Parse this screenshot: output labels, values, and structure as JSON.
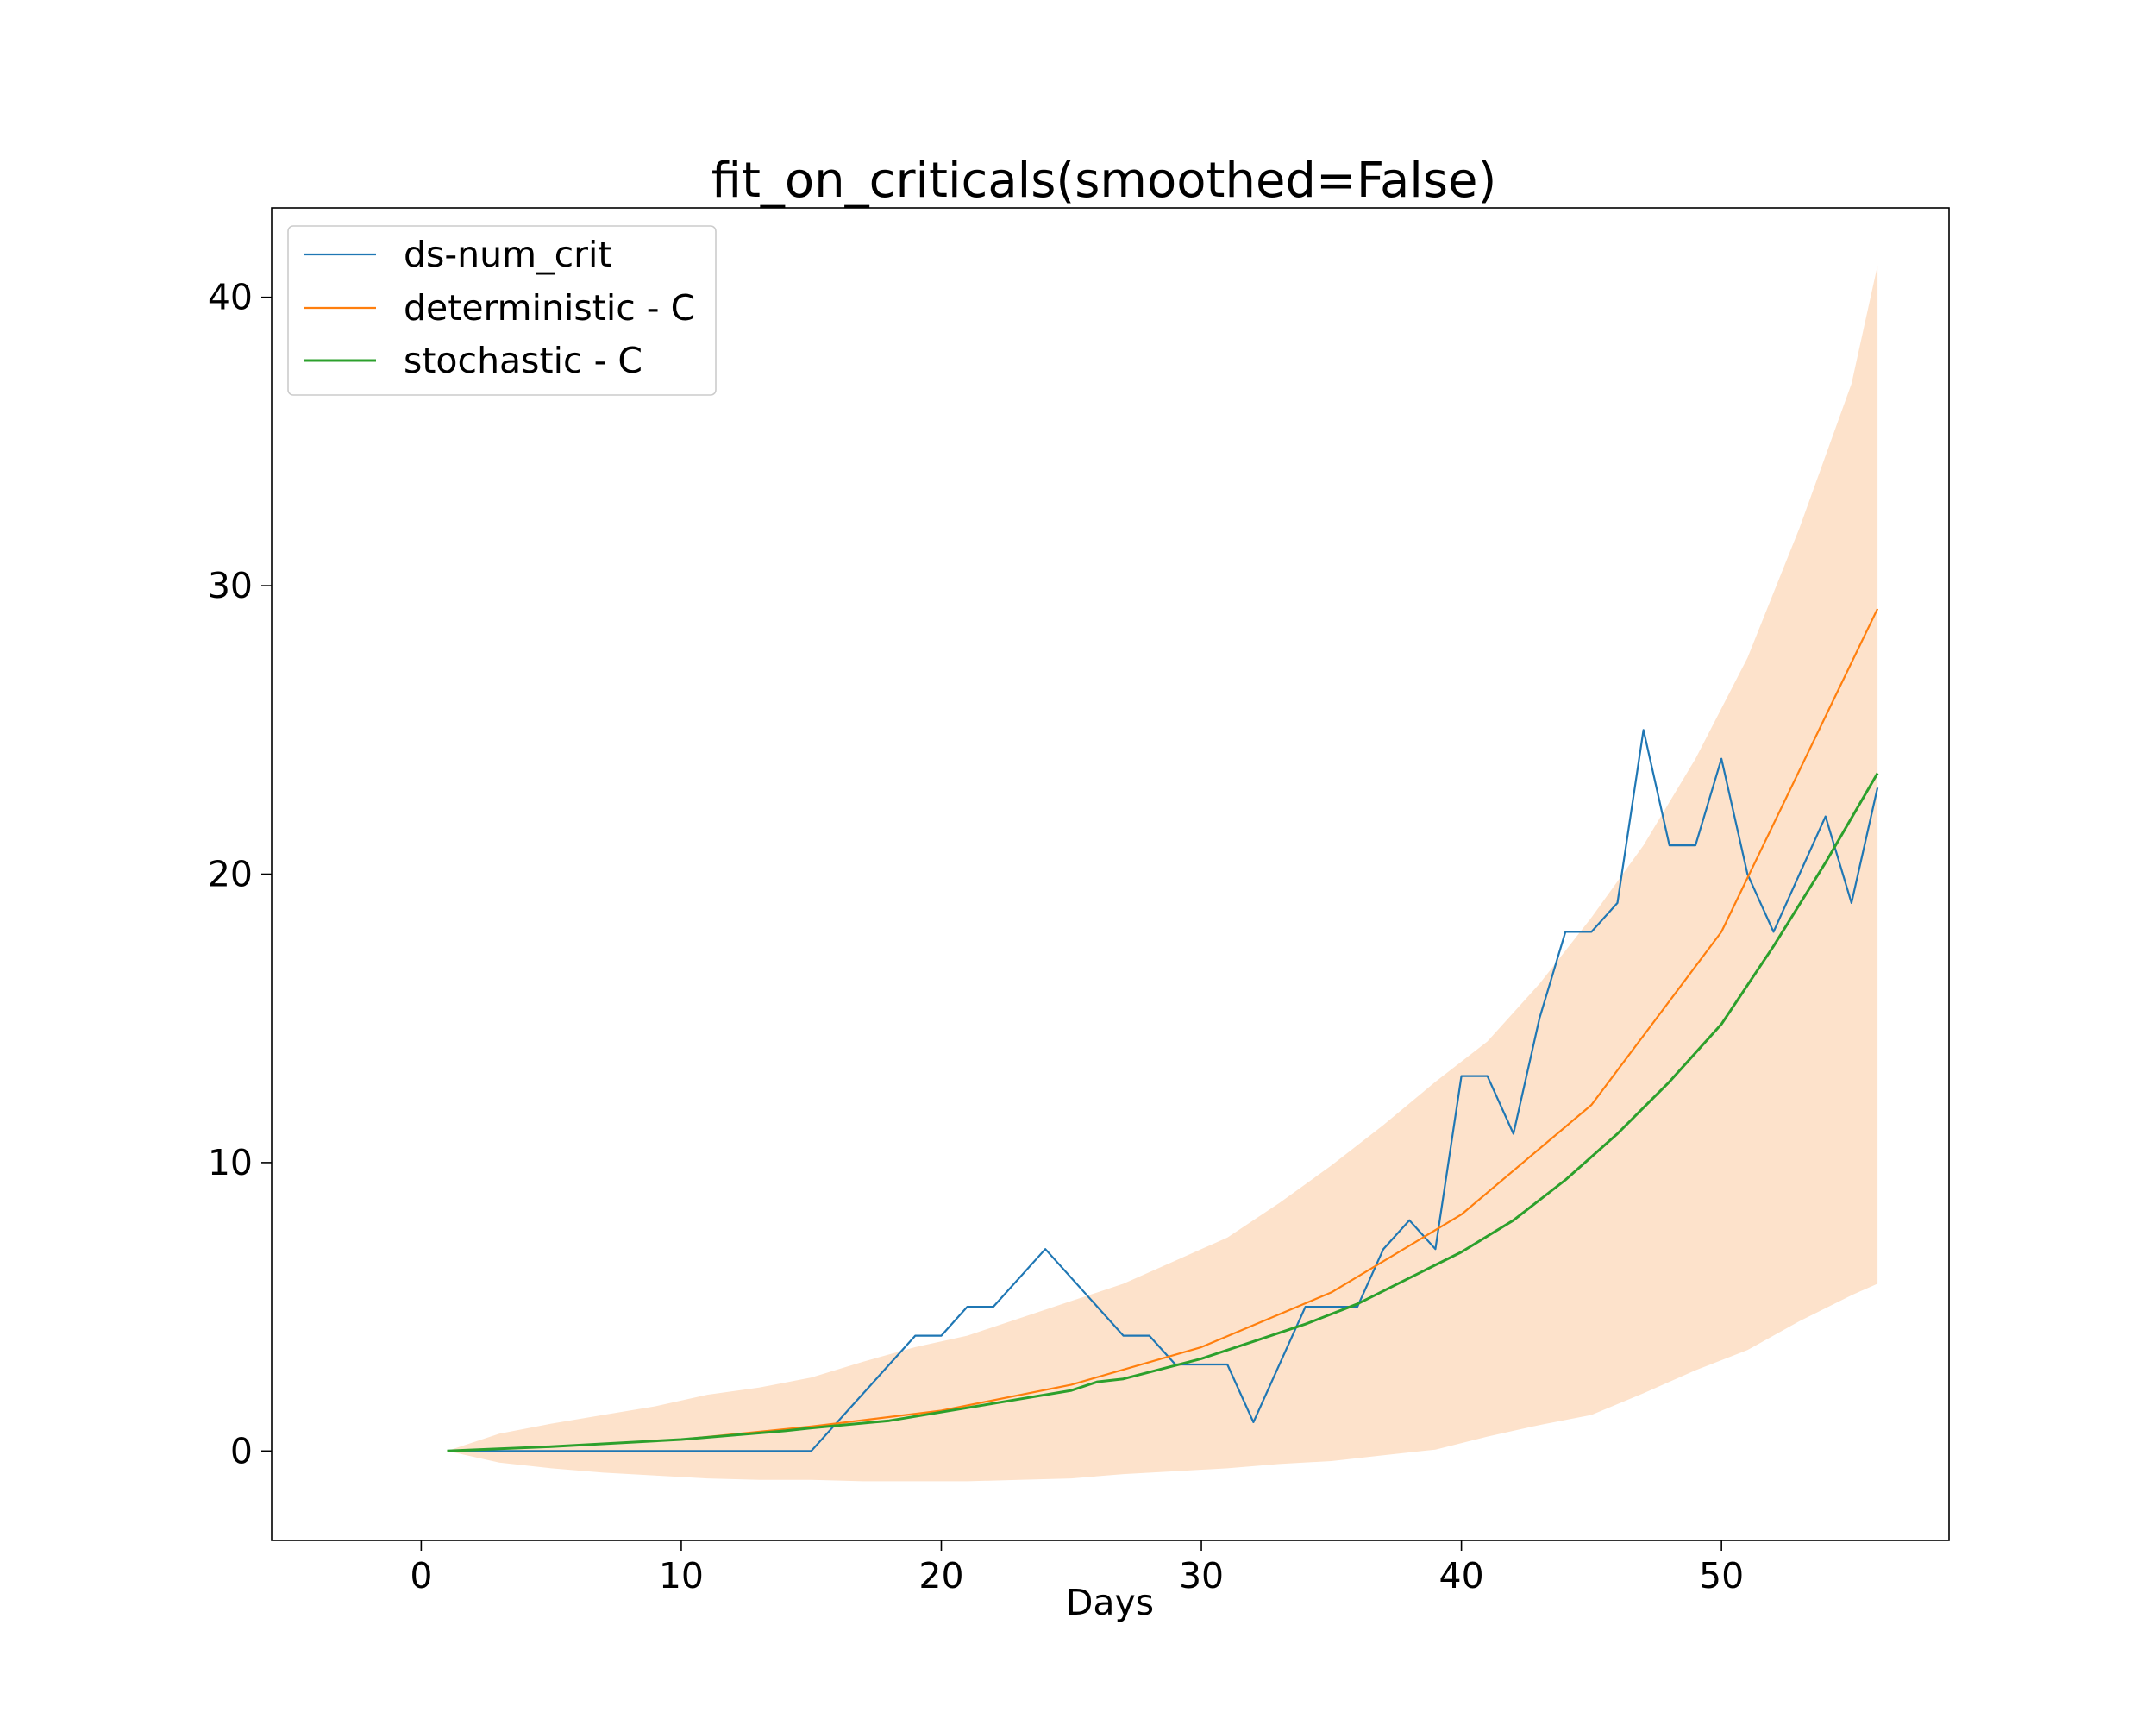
{
  "chart_data": {
    "type": "line",
    "title": "fit_on_criticals(smoothed=False)",
    "xlabel": "Days",
    "ylabel": "",
    "xlim": [
      -5.75,
      58.75
    ],
    "ylim": [
      -3.1,
      43.1
    ],
    "xticks": [
      0,
      10,
      20,
      30,
      40,
      50
    ],
    "yticks": [
      0,
      10,
      20,
      30,
      40
    ],
    "grid": false,
    "legend_position": "top-left",
    "colors": {
      "ds": "#1f77b4",
      "deterministic": "#ff7f0e",
      "stochastic": "#2ca02c",
      "band": "#fde2cb"
    },
    "band": {
      "x": [
        1,
        3,
        5,
        7,
        9,
        11,
        13,
        15,
        17,
        19,
        21,
        23,
        25,
        27,
        29,
        31,
        33,
        35,
        37,
        39,
        41,
        43,
        45,
        47,
        49,
        51,
        53,
        55,
        56
      ],
      "upper": [
        0,
        0.6,
        0.95,
        1.25,
        1.55,
        1.95,
        2.2,
        2.55,
        3.1,
        3.6,
        4.0,
        4.6,
        5.2,
        5.8,
        6.6,
        7.4,
        8.6,
        9.9,
        11.3,
        12.8,
        14.2,
        16.2,
        18.5,
        21.0,
        24.0,
        27.5,
        32.0,
        37.0,
        41.1
      ],
      "lower": [
        0,
        -0.4,
        -0.6,
        -0.75,
        -0.85,
        -0.95,
        -1.0,
        -1.0,
        -1.05,
        -1.05,
        -1.05,
        -1.0,
        -0.95,
        -0.8,
        -0.7,
        -0.6,
        -0.45,
        -0.35,
        -0.15,
        0.05,
        0.5,
        0.9,
        1.25,
        2.0,
        2.8,
        3.5,
        4.5,
        5.4,
        5.8
      ]
    },
    "series": [
      {
        "name": "ds-num_crit",
        "x": [
          1,
          15,
          19,
          20,
          21,
          22,
          24,
          27,
          28,
          29,
          30,
          31,
          32,
          34,
          36,
          37,
          38,
          39,
          40,
          41,
          42,
          43,
          44,
          45,
          46,
          47,
          48,
          49,
          50,
          51,
          52,
          53,
          54,
          55,
          56
        ],
        "values": [
          0,
          0,
          4,
          4,
          5,
          5,
          7,
          4,
          4,
          3,
          3,
          3,
          1,
          5,
          5,
          7,
          8,
          7,
          13,
          13,
          11,
          15,
          18,
          18,
          19,
          25,
          21,
          21,
          24,
          20,
          18,
          20,
          22,
          19,
          23
        ]
      },
      {
        "name": "deterministic - C",
        "x": [
          1,
          5,
          10,
          15,
          20,
          25,
          30,
          35,
          40,
          45,
          50,
          56
        ],
        "values": [
          0,
          0.15,
          0.4,
          0.85,
          1.4,
          2.3,
          3.6,
          5.5,
          8.2,
          12.0,
          18.0,
          29.2
        ]
      },
      {
        "name": "stochastic - C",
        "x": [
          1,
          5,
          10,
          14,
          15,
          18,
          20,
          22,
          25,
          26,
          27,
          30,
          32,
          34,
          36,
          38,
          40,
          42,
          44,
          46,
          48,
          50,
          52,
          54,
          56
        ],
        "values": [
          0,
          0.15,
          0.4,
          0.7,
          0.8,
          1.05,
          1.35,
          1.65,
          2.1,
          2.4,
          2.5,
          3.2,
          3.8,
          4.4,
          5.1,
          6.0,
          6.9,
          8.0,
          9.4,
          11.0,
          12.8,
          14.8,
          17.5,
          20.4,
          23.5
        ]
      }
    ]
  }
}
